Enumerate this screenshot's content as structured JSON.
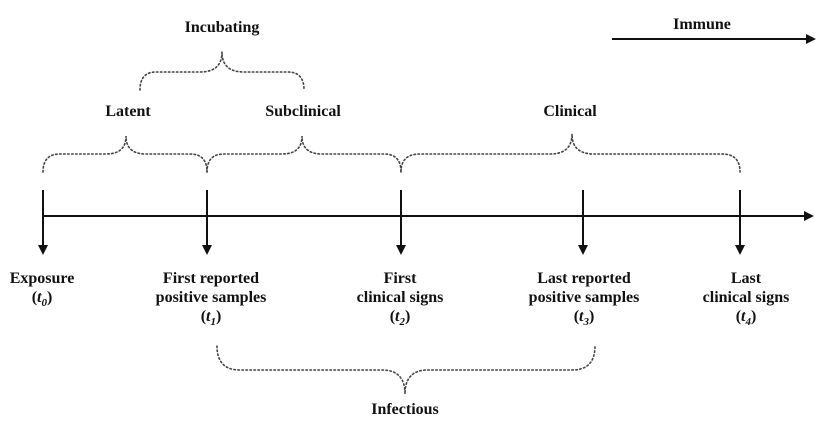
{
  "phases": {
    "incubating": "Incubating",
    "latent": "Latent",
    "subclinical": "Subclinical",
    "clinical": "Clinical",
    "immune": "Immune",
    "infectious": "Infectious"
  },
  "timepoints": [
    {
      "lines": [
        "Exposure"
      ],
      "symbol": "t",
      "subscript": "0"
    },
    {
      "lines": [
        "First reported",
        "positive samples"
      ],
      "symbol": "t",
      "subscript": "1"
    },
    {
      "lines": [
        "First",
        "clinical signs"
      ],
      "symbol": "t",
      "subscript": "2"
    },
    {
      "lines": [
        "Last reported",
        "positive samples"
      ],
      "symbol": "t",
      "subscript": "3"
    },
    {
      "lines": [
        "Last",
        "clinical signs"
      ],
      "symbol": "t",
      "subscript": "4"
    }
  ],
  "colors": {
    "ink": "#111111",
    "brace": "#444444"
  }
}
